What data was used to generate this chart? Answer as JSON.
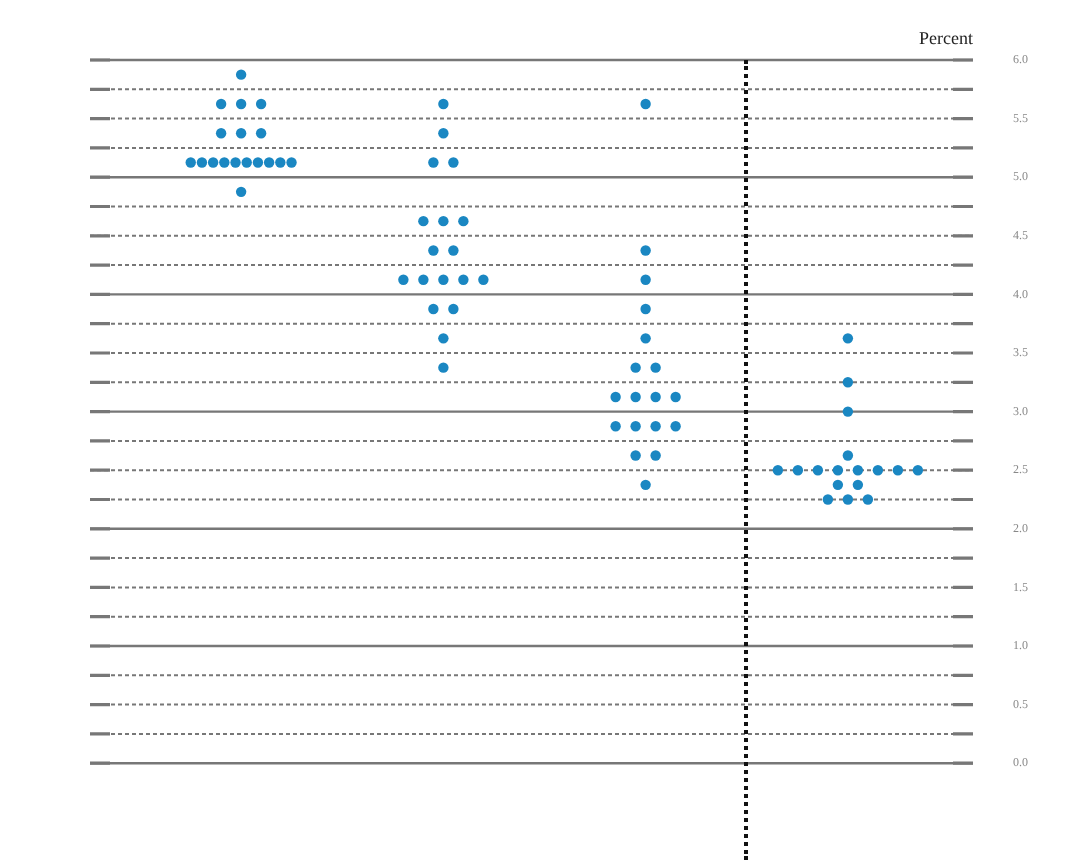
{
  "chart_data": {
    "type": "scatter",
    "ylabel": "Percent",
    "categories": [
      null,
      null,
      null,
      null
    ],
    "series": [
      {
        "color": "#1a87c2",
        "values": [
          5.875,
          5.625,
          5.625,
          3.625
        ]
      },
      {
        "color": "#1a87c2",
        "values": [
          5.625,
          5.375,
          4.375,
          3.25
        ]
      },
      {
        "color": "#1a87c2",
        "values": [
          5.625,
          5.125,
          4.125,
          3
        ]
      },
      {
        "color": "#1a87c2",
        "values": [
          5.625,
          5.125,
          3.875,
          2.625
        ]
      },
      {
        "color": "#1a87c2",
        "values": [
          5.375,
          4.625,
          3.625,
          2.5
        ]
      },
      {
        "color": "#1a87c2",
        "values": [
          5.375,
          4.625,
          3.375,
          2.5
        ]
      },
      {
        "color": "#1a87c2",
        "values": [
          5.375,
          4.625,
          3.375,
          2.5
        ]
      },
      {
        "color": "#1a87c2",
        "values": [
          5.125,
          4.375,
          3.125,
          2.5
        ]
      },
      {
        "color": "#1a87c2",
        "values": [
          5.125,
          4.375,
          3.125,
          2.5
        ]
      },
      {
        "color": "#1a87c2",
        "values": [
          5.125,
          4.125,
          3.125,
          2.5
        ]
      },
      {
        "color": "#1a87c2",
        "values": [
          5.125,
          4.125,
          3.125,
          2.5
        ]
      },
      {
        "color": "#1a87c2",
        "values": [
          5.125,
          4.125,
          2.875,
          2.5
        ]
      },
      {
        "color": "#1a87c2",
        "values": [
          5.125,
          4.125,
          2.875,
          2.375
        ]
      },
      {
        "color": "#1a87c2",
        "values": [
          5.125,
          4.125,
          2.875,
          2.375
        ]
      },
      {
        "color": "#1a87c2",
        "values": [
          5.125,
          3.875,
          2.875,
          2.25
        ]
      },
      {
        "color": "#1a87c2",
        "values": [
          5.125,
          3.875,
          2.625,
          2.25
        ]
      },
      {
        "color": "#1a87c2",
        "values": [
          5.125,
          3.625,
          2.625,
          2.25
        ]
      },
      {
        "color": "#1a87c2",
        "values": [
          4.875,
          3.375,
          2.375,
          null
        ]
      }
    ],
    "ylim": [
      0,
      6
    ],
    "yticks": [
      {
        "value": 0,
        "label": "0.0"
      },
      {
        "value": 0.25,
        "label": null
      },
      {
        "value": 0.5,
        "label": "0.5"
      },
      {
        "value": 0.75,
        "label": null
      },
      {
        "value": 1,
        "label": "1.0"
      },
      {
        "value": 1.25,
        "label": null
      },
      {
        "value": 1.5,
        "label": "1.5"
      },
      {
        "value": 1.75,
        "label": null
      },
      {
        "value": 2,
        "label": "2.0"
      },
      {
        "value": 2.25,
        "label": null
      },
      {
        "value": 2.5,
        "label": "2.5"
      },
      {
        "value": 2.75,
        "label": null
      },
      {
        "value": 3,
        "label": "3.0"
      },
      {
        "value": 3.25,
        "label": null
      },
      {
        "value": 3.5,
        "label": "3.5"
      },
      {
        "value": 3.75,
        "label": null
      },
      {
        "value": 4,
        "label": "4.0"
      },
      {
        "value": 4.25,
        "label": null
      },
      {
        "value": 4.5,
        "label": "4.5"
      },
      {
        "value": 4.75,
        "label": null
      },
      {
        "value": 5,
        "label": "5.0"
      },
      {
        "value": 5.25,
        "label": null
      },
      {
        "value": 5.5,
        "label": "5.5"
      },
      {
        "value": 5.75,
        "label": null
      },
      {
        "value": 6,
        "label": "6.0"
      }
    ],
    "grid": "y",
    "marker": "circle",
    "legend": false
  }
}
